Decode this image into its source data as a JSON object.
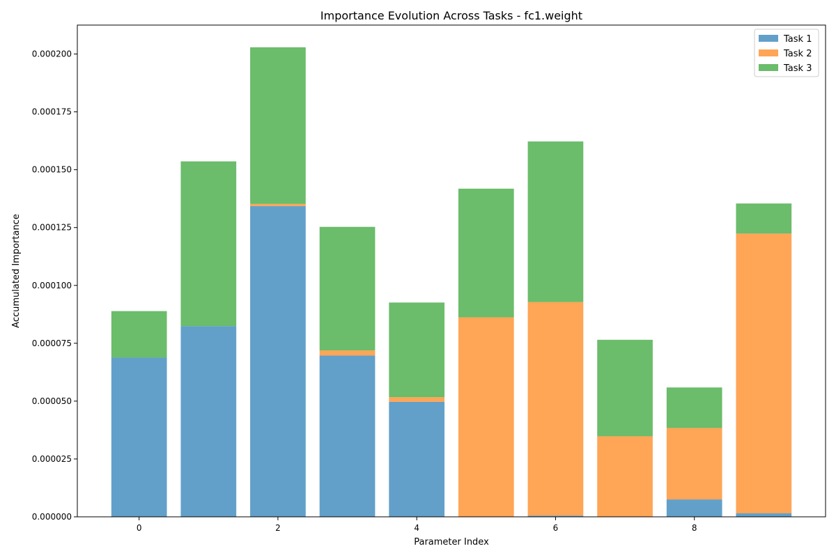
{
  "chart_data": {
    "type": "bar",
    "stacked": true,
    "title": "Importance Evolution Across Tasks - fc1.weight",
    "xlabel": "Parameter Index",
    "ylabel": "Accumulated Importance",
    "categories": [
      0,
      1,
      2,
      3,
      4,
      5,
      6,
      7,
      8,
      9
    ],
    "x_ticks": [
      0,
      2,
      4,
      6,
      8
    ],
    "y_ticks": [
      "0.000000",
      "0.000025",
      "0.000050",
      "0.000075",
      "0.000100",
      "0.000125",
      "0.000150",
      "0.000175",
      "0.000200"
    ],
    "xlim": [
      -0.89,
      9.89
    ],
    "ylim": [
      0,
      0.0002125
    ],
    "grid": false,
    "legend_position": "top-right",
    "series": [
      {
        "name": "Task 1",
        "color": "#1f77b4",
        "values": [
          6.88e-05,
          8.24e-05,
          0.0001343,
          6.97e-05,
          4.97e-05,
          0.0,
          5e-07,
          0.0,
          7.5e-06,
          1.5e-06
        ]
      },
      {
        "name": "Task 2",
        "color": "#ff7f0e",
        "values": [
          0.0,
          0.0,
          9e-07,
          2.2e-06,
          2e-06,
          8.62e-05,
          9.23e-05,
          3.48e-05,
          3.09e-05,
          0.0001209
        ]
      },
      {
        "name": "Task 3",
        "color": "#2ca02c",
        "values": [
          2.01e-05,
          7.12e-05,
          6.77e-05,
          5.34e-05,
          4.09e-05,
          5.56e-05,
          6.94e-05,
          4.17e-05,
          1.75e-05,
          1.3e-05
        ]
      }
    ]
  }
}
